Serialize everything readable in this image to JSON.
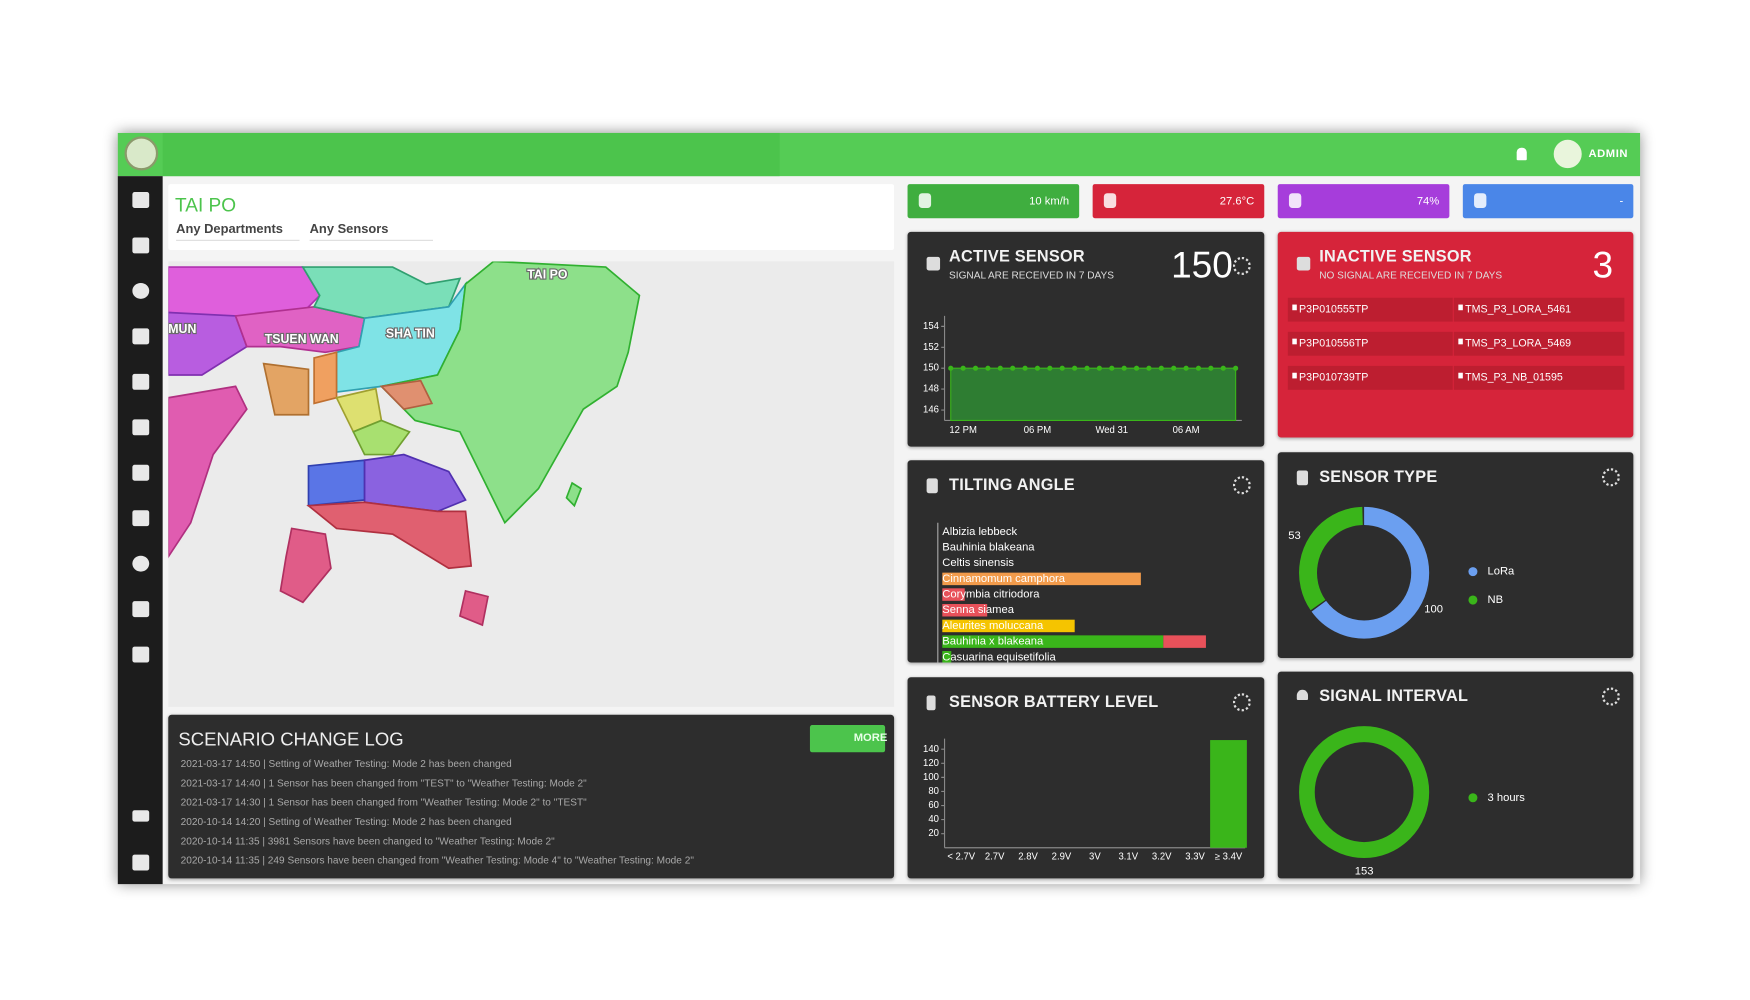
{
  "header": {
    "user": "ADMIN"
  },
  "filters": {
    "location": "TAI PO",
    "department": "Any Departments",
    "sensor": "Any Sensors"
  },
  "map": {
    "labels": [
      "TAI PO",
      "TSUEN WAN",
      "SHA TIN",
      "MUN"
    ]
  },
  "log": {
    "title": "SCENARIO CHANGE LOG",
    "button": "MORE",
    "entries": [
      "2021-03-17 14:50 | Setting of Weather Testing: Mode 2 has been changed",
      "2021-03-17 14:40 | 1 Sensor has been changed from \"TEST\" to \"Weather Testing: Mode 2\"",
      "2021-03-17 14:30 | 1 Sensor has been changed from \"Weather Testing: Mode 2\" to \"TEST\"",
      "2020-10-14 14:20 | Setting of Weather Testing: Mode 2 has been changed",
      "2020-10-14 11:35 | 3981 Sensors have been changed to \"Weather Testing: Mode 2\"",
      "2020-10-14 11:35 | 249 Sensors have been changed from \"Weather Testing: Mode 4\" to \"Weather Testing: Mode 2\""
    ]
  },
  "weather": [
    "10 km/h",
    "27.6°C",
    "74%",
    "-"
  ],
  "active": {
    "title": "ACTIVE SENSOR",
    "subtitle": "SIGNAL ARE RECEIVED IN 7 DAYS",
    "count": 150
  },
  "inactive": {
    "title": "INACTIVE SENSOR",
    "subtitle": "NO SIGNAL ARE RECEIVED IN 7 DAYS",
    "count": 3,
    "sensors": [
      "P3P010555TP",
      "TMS_P3_LORA_5461",
      "P3P010556TP",
      "TMS_P3_LORA_5469",
      "P3P010739TP",
      "TMS_P3_NB_01595"
    ]
  },
  "chart_data": [
    {
      "type": "line",
      "categories": [
        null,
        "12 PM",
        null,
        null,
        null,
        null,
        null,
        "06 PM",
        null,
        null,
        null,
        null,
        null,
        "Wed 31",
        null,
        null,
        null,
        null,
        null,
        "06 AM",
        null,
        null,
        null,
        null
      ],
      "values": [
        150,
        150,
        150,
        150,
        150,
        150,
        150,
        150,
        150,
        150,
        150,
        150,
        150,
        150,
        150,
        150,
        150,
        150,
        150,
        150,
        150,
        150,
        150,
        150
      ],
      "color": "#3ab51a",
      "ylim": [
        145,
        155
      ],
      "yticks": [
        146,
        148,
        150,
        152,
        154
      ]
    },
    {
      "type": "hbar",
      "title": "TILTING ANGLE",
      "categories": [
        "Albizia lebbeck",
        "Bauhinia blakeana",
        "Celtis sinensis",
        "Cinnamomum camphora",
        "Corymbia citriodora",
        "Senna siamea",
        "Aleurites moluccana",
        "Bauhinia x blakeana",
        "Casuarina equisetifolia"
      ],
      "series": [
        {
          "values": [
            0,
            0,
            0,
            177,
            20,
            40,
            118,
            197,
            8
          ],
          "colors": [
            "#3ab51a",
            "#3ab51a",
            "#3ab51a",
            "#f29b4b",
            "#e8515a",
            "#e8515a",
            "#f5c400",
            "#3ab51a",
            "#3ab51a"
          ]
        },
        {
          "values": [
            0,
            0,
            0,
            0,
            0,
            0,
            0,
            38,
            0
          ],
          "color": "#e8515a"
        }
      ],
      "xlim": [
        0,
        280
      ]
    },
    {
      "type": "donut",
      "title": "SENSOR TYPE",
      "categories": [
        "LoRa",
        "NB"
      ],
      "values": [
        100,
        53
      ],
      "colors": [
        "#6b9ff0",
        "#3ab51a"
      ]
    },
    {
      "type": "bar",
      "title": "SENSOR BATTERY LEVEL",
      "categories": [
        "< 2.7V",
        "2.7V",
        "2.8V",
        "2.9V",
        "3V",
        "3.1V",
        "3.2V",
        "3.3V",
        "≥ 3.4V"
      ],
      "values": [
        0,
        0,
        0,
        0,
        0,
        0,
        0,
        0,
        153
      ],
      "color": "#3ab51a",
      "ylim": [
        0,
        155
      ],
      "yticks": [
        20,
        40,
        60,
        80,
        100,
        120,
        140
      ]
    },
    {
      "type": "donut",
      "title": "SIGNAL INTERVAL",
      "categories": [
        "3 hours"
      ],
      "values": [
        153
      ],
      "colors": [
        "#3ab51a"
      ]
    }
  ]
}
